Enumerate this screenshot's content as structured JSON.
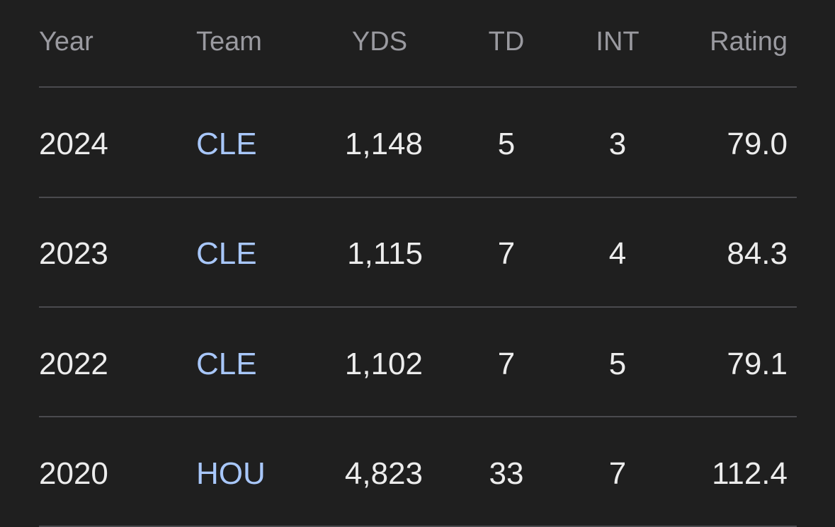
{
  "table": {
    "headers": {
      "year": "Year",
      "team": "Team",
      "yds": "YDS",
      "td": "TD",
      "int": "INT",
      "rating": "Rating"
    },
    "rows": [
      {
        "year": "2024",
        "team": "CLE",
        "yds": "1,148",
        "td": "5",
        "int": "3",
        "rating": "79.0"
      },
      {
        "year": "2023",
        "team": "CLE",
        "yds": "1,115",
        "td": "7",
        "int": "4",
        "rating": "84.3"
      },
      {
        "year": "2022",
        "team": "CLE",
        "yds": "1,102",
        "td": "7",
        "int": "5",
        "rating": "79.1"
      },
      {
        "year": "2020",
        "team": "HOU",
        "yds": "4,823",
        "td": "33",
        "int": "7",
        "rating": "112.4"
      }
    ]
  },
  "colors": {
    "background": "#1f1f1f",
    "header_text": "#9a9aa0",
    "cell_text": "#ececec",
    "team_link": "#a8c7fa",
    "divider": "#4a4a4e"
  }
}
